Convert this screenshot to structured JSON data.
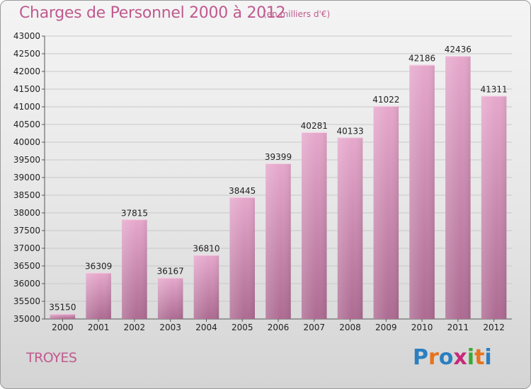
{
  "header": {
    "title": "Charges de Personnel 2000 à 2012",
    "subtitle": "(en milliers d'€)"
  },
  "footer": {
    "city": "TROYES",
    "logo_letters": [
      "P",
      "r",
      "o",
      "x",
      "i",
      "t",
      "i"
    ],
    "logo_colors": [
      "#2b7fc1",
      "#e8731c",
      "#2b7fc1",
      "#c7287a",
      "#39a935",
      "#e8731c",
      "#2b7fc1"
    ]
  },
  "colors": {
    "title": "#c05a8e",
    "bar_top": "#e6a8cc",
    "bar_bottom": "#ad6b92",
    "grid": "#c8c8c8"
  },
  "chart_data": {
    "type": "bar",
    "title": "Charges de Personnel 2000 à 2012",
    "subtitle": "(en milliers d'€)",
    "categories": [
      "2000",
      "2001",
      "2002",
      "2003",
      "2004",
      "2005",
      "2006",
      "2007",
      "2008",
      "2009",
      "2010",
      "2011",
      "2012"
    ],
    "values": [
      35150,
      36309,
      37815,
      36167,
      36810,
      38445,
      39399,
      40281,
      40133,
      41022,
      42186,
      42436,
      41311
    ],
    "ylim": [
      35000,
      43000
    ],
    "yticks": [
      35000,
      35500,
      36000,
      36500,
      37000,
      37500,
      38000,
      38500,
      39000,
      39500,
      40000,
      40500,
      41000,
      41500,
      42000,
      42500,
      43000
    ],
    "grid": true,
    "xlabel": "",
    "ylabel": ""
  }
}
